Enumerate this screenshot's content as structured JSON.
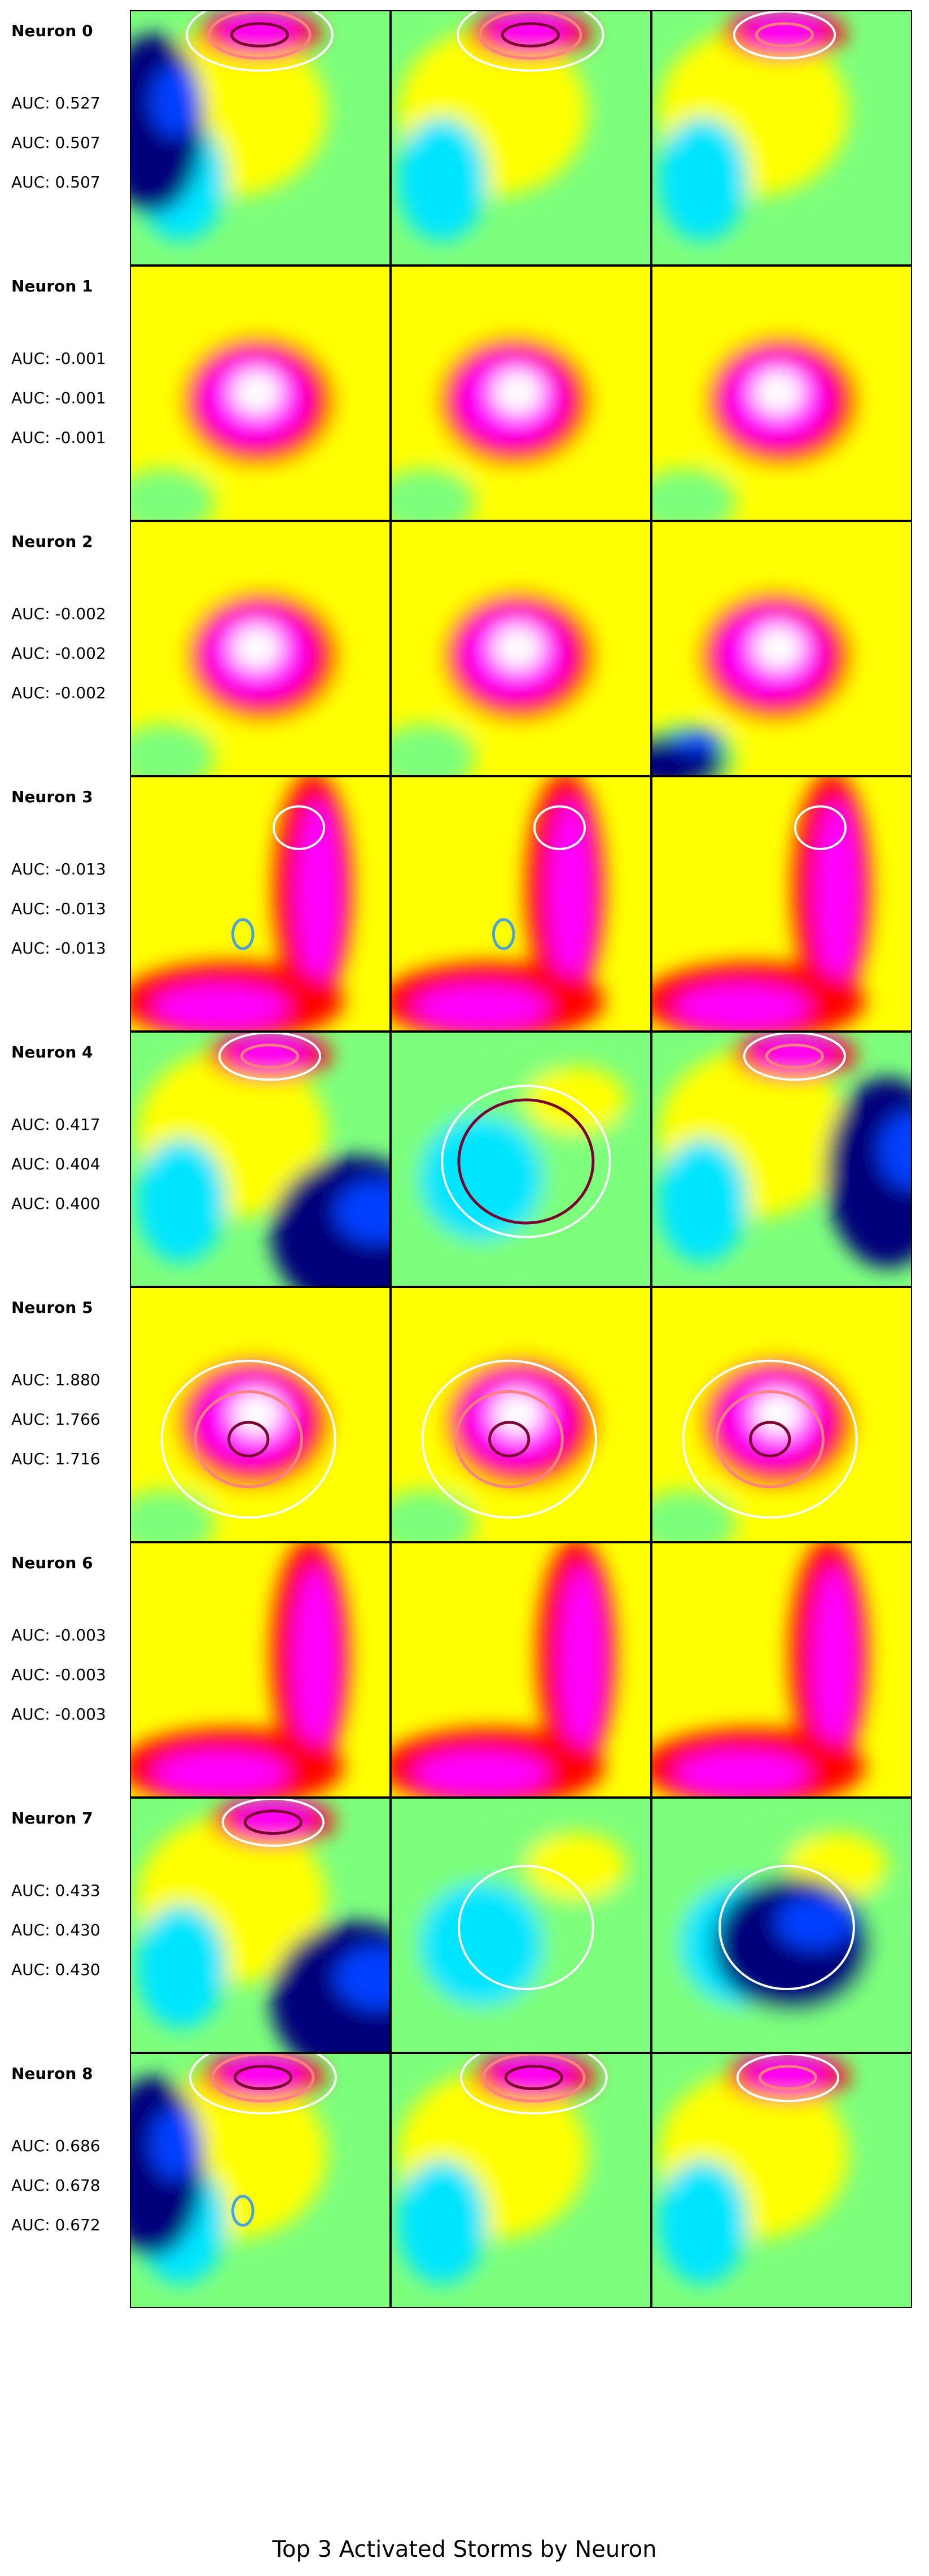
{
  "figure": {
    "title": "Top 3 Activated Storms by Neuron"
  },
  "colors": {
    "colormap": [
      "#00007a",
      "#0040ff",
      "#00e5ff",
      "#7dff7d",
      "#ffff00",
      "#ff0000",
      "#ff00ff",
      "#ffffff"
    ],
    "contour_strong": "#7a0030",
    "contour_mid": "#ff8080",
    "contour_light": "#ffffff",
    "contour_blue": "#4aa3d8"
  },
  "chart_data": {
    "type": "heatmap",
    "layout": "grid of image panels",
    "rows": 9,
    "cols": 3,
    "neurons": [
      {
        "label": "Neuron 0",
        "auc": [
          "AUC: 0.527",
          "AUC: 0.507",
          "AUC: 0.507"
        ],
        "panels": [
          {
            "style": "anvil",
            "contours": [
              "strong",
              "mid",
              "light"
            ],
            "dark_region": "left"
          },
          {
            "style": "anvil",
            "contours": [
              "strong",
              "mid",
              "light"
            ],
            "dark_region": "none"
          },
          {
            "style": "anvil",
            "contours": [
              "mid",
              "light"
            ],
            "dark_region": "none"
          }
        ]
      },
      {
        "label": "Neuron 1",
        "auc": [
          "AUC: -0.001",
          "AUC: -0.001",
          "AUC: -0.001"
        ],
        "panels": [
          {
            "style": "hot-core",
            "contours": [],
            "dark_region": "none"
          },
          {
            "style": "hot-core",
            "contours": [],
            "dark_region": "none"
          },
          {
            "style": "hot-core",
            "contours": [],
            "dark_region": "none"
          }
        ]
      },
      {
        "label": "Neuron 2",
        "auc": [
          "AUC: -0.002",
          "AUC: -0.002",
          "AUC: -0.002"
        ],
        "panels": [
          {
            "style": "hot-core",
            "contours": [],
            "dark_region": "none"
          },
          {
            "style": "hot-core",
            "contours": [],
            "dark_region": "none"
          },
          {
            "style": "hot-core",
            "contours": [],
            "dark_region": "bottom-left"
          }
        ]
      },
      {
        "label": "Neuron 3",
        "auc": [
          "AUC: -0.013",
          "AUC: -0.013",
          "AUC: -0.013"
        ],
        "panels": [
          {
            "style": "hot-band",
            "contours": [
              "light",
              "blue"
            ],
            "dark_region": "none"
          },
          {
            "style": "hot-band",
            "contours": [
              "light",
              "blue"
            ],
            "dark_region": "none"
          },
          {
            "style": "hot-band",
            "contours": [
              "light"
            ],
            "dark_region": "none"
          }
        ]
      },
      {
        "label": "Neuron 4",
        "auc": [
          "AUC: 0.417",
          "AUC: 0.404",
          "AUC: 0.400"
        ],
        "panels": [
          {
            "style": "anvil",
            "contours": [
              "mid",
              "light"
            ],
            "dark_region": "bottom-right"
          },
          {
            "style": "cool",
            "contours": [
              "strong",
              "light"
            ],
            "dark_region": "none"
          },
          {
            "style": "anvil",
            "contours": [
              "mid",
              "light"
            ],
            "dark_region": "right"
          }
        ]
      },
      {
        "label": "Neuron 5",
        "auc": [
          "AUC: 1.880",
          "AUC: 1.766",
          "AUC: 1.716"
        ],
        "panels": [
          {
            "style": "hot-core",
            "contours": [
              "strong",
              "mid",
              "light"
            ],
            "dark_region": "none"
          },
          {
            "style": "hot-core",
            "contours": [
              "strong",
              "mid",
              "light"
            ],
            "dark_region": "none"
          },
          {
            "style": "hot-core",
            "contours": [
              "strong",
              "mid",
              "light"
            ],
            "dark_region": "none"
          }
        ]
      },
      {
        "label": "Neuron 6",
        "auc": [
          "AUC: -0.003",
          "AUC: -0.003",
          "AUC: -0.003"
        ],
        "panels": [
          {
            "style": "hot-band",
            "contours": [],
            "dark_region": "none"
          },
          {
            "style": "hot-band",
            "contours": [],
            "dark_region": "none"
          },
          {
            "style": "hot-band",
            "contours": [],
            "dark_region": "none"
          }
        ]
      },
      {
        "label": "Neuron 7",
        "auc": [
          "AUC: 0.433",
          "AUC: 0.430",
          "AUC: 0.430"
        ],
        "panels": [
          {
            "style": "anvil",
            "contours": [
              "strong",
              "light"
            ],
            "dark_region": "bottom-right"
          },
          {
            "style": "cool",
            "contours": [
              "light"
            ],
            "dark_region": "none"
          },
          {
            "style": "cool",
            "contours": [
              "light"
            ],
            "dark_region": "center"
          }
        ]
      },
      {
        "label": "Neuron 8",
        "auc": [
          "AUC: 0.686",
          "AUC: 0.678",
          "AUC: 0.672"
        ],
        "panels": [
          {
            "style": "anvil",
            "contours": [
              "strong",
              "mid",
              "light",
              "blue"
            ],
            "dark_region": "left"
          },
          {
            "style": "anvil",
            "contours": [
              "strong",
              "mid",
              "light"
            ],
            "dark_region": "none"
          },
          {
            "style": "anvil",
            "contours": [
              "mid",
              "light"
            ],
            "dark_region": "none"
          }
        ]
      }
    ]
  }
}
